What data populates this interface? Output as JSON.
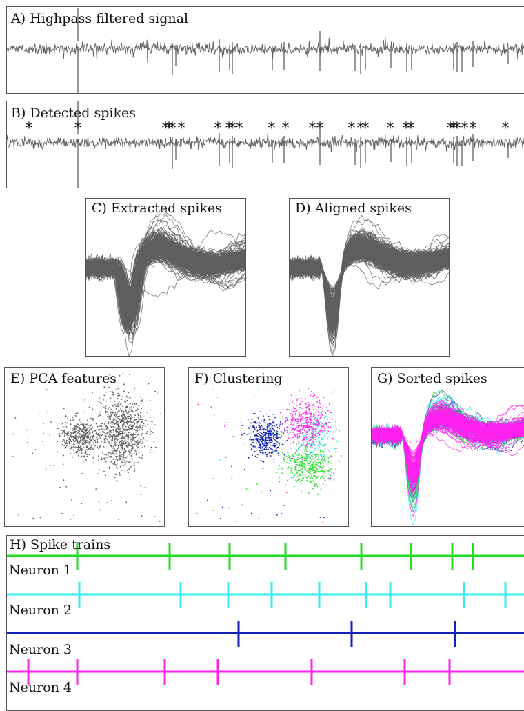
{
  "colors": {
    "signal": "#5f5f5f",
    "neuron_1": "#22dd22",
    "neuron_2": "#33eeee",
    "neuron_3": "#1122bb",
    "neuron_4": "#ff22ee"
  },
  "panels": {
    "a": {
      "title": "A) Highpass filtered signal"
    },
    "b": {
      "title": "B) Detected spikes",
      "marker": "*"
    },
    "c": {
      "title": "C) Extracted spikes"
    },
    "d": {
      "title": "D) Aligned spikes"
    },
    "e": {
      "title": "E) PCA features"
    },
    "f": {
      "title": "F) Clustering"
    },
    "g": {
      "title": "G) Sorted spikes"
    },
    "h": {
      "title": "H) Spike trains"
    }
  },
  "neurons": [
    {
      "label": "Neuron 1",
      "color_key": "neuron_1"
    },
    {
      "label": "Neuron 2",
      "color_key": "neuron_2"
    },
    {
      "label": "Neuron 3",
      "color_key": "neuron_3"
    },
    {
      "label": "Neuron 4",
      "color_key": "neuron_4"
    }
  ]
}
